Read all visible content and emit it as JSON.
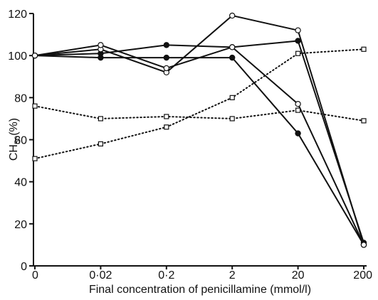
{
  "chart_data": {
    "type": "line",
    "xlabel": "Final concentration of penicillamine (mmol/l)",
    "ylabel": "CH50(%)",
    "ylabel_main": "CH",
    "ylabel_sub": "50",
    "ylabel_unit": "(%)",
    "categories": [
      "0",
      "0·02",
      "0·2",
      "2",
      "20",
      "200"
    ],
    "y_ticks": [
      "0",
      "20",
      "40",
      "60",
      "80",
      "100",
      "120"
    ],
    "ylim": [
      0,
      120
    ],
    "grid": false,
    "series": [
      {
        "style": "solid",
        "marker": "filled-circle",
        "values": [
          100,
          99,
          99,
          99,
          63,
          10
        ]
      },
      {
        "style": "solid",
        "marker": "filled-circle",
        "values": [
          100,
          101,
          105,
          104,
          107,
          11
        ]
      },
      {
        "style": "solid",
        "marker": "open-circle",
        "values": [
          100,
          103,
          92,
          119,
          112,
          10
        ]
      },
      {
        "style": "solid",
        "marker": "open-circle",
        "values": [
          100,
          105,
          94,
          104,
          77,
          10
        ]
      },
      {
        "style": "dotted",
        "marker": "open-square",
        "values": [
          76,
          70,
          71,
          70,
          74,
          69
        ]
      },
      {
        "style": "dotted",
        "marker": "open-square",
        "values": [
          51,
          58,
          66,
          80,
          101,
          103
        ]
      }
    ]
  }
}
